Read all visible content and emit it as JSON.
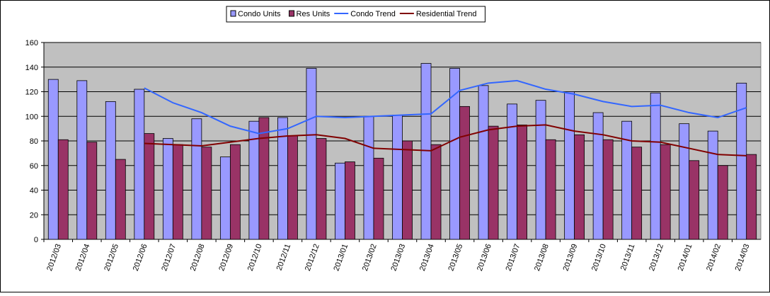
{
  "chart_data": {
    "type": "bar_line",
    "categories": [
      "2012/03",
      "2012/04",
      "2012/05",
      "2012/06",
      "2012/07",
      "2012/08",
      "2012/09",
      "2012/10",
      "2012/11",
      "2012/12",
      "2013/01",
      "2013/02",
      "2013/03",
      "2013/04",
      "2013/05",
      "2013/06",
      "2013/07",
      "2013/08",
      "2013/09",
      "2013/10",
      "2013/11",
      "2013/12",
      "2014/01",
      "2014/02",
      "2014/03"
    ],
    "series": [
      {
        "name": "Condo Units",
        "type": "bar",
        "color": "#9999ff",
        "values": [
          130,
          129,
          112,
          122,
          82,
          98,
          67,
          96,
          99,
          139,
          62,
          100,
          101,
          143,
          139,
          125,
          110,
          113,
          120,
          103,
          96,
          119,
          94,
          88,
          127
        ]
      },
      {
        "name": "Res Units",
        "type": "bar",
        "color": "#993366",
        "values": [
          81,
          79,
          65,
          86,
          77,
          75,
          77,
          99,
          84,
          82,
          63,
          66,
          80,
          77,
          108,
          92,
          93,
          81,
          85,
          81,
          75,
          77,
          64,
          60,
          69
        ]
      },
      {
        "name": "Condo Trend",
        "type": "line",
        "color": "#3366ff",
        "values": [
          null,
          null,
          null,
          123,
          111,
          103,
          92,
          86,
          90,
          100,
          99,
          100,
          101,
          102,
          121,
          127,
          129,
          122,
          118,
          112,
          108,
          109,
          103,
          99,
          107
        ]
      },
      {
        "name": "Residential Trend",
        "type": "line",
        "color": "#800000",
        "values": [
          null,
          null,
          null,
          78,
          77,
          76,
          79,
          82,
          84,
          85,
          82,
          74,
          73,
          72,
          83,
          89,
          92,
          93,
          88,
          85,
          80,
          79,
          74,
          69,
          68
        ]
      }
    ],
    "ylim": [
      0,
      160
    ],
    "yticks": [
      0,
      20,
      40,
      60,
      80,
      100,
      120,
      140,
      160
    ],
    "grid": true,
    "legend": "top",
    "plot_background": "#c0c0c0"
  }
}
